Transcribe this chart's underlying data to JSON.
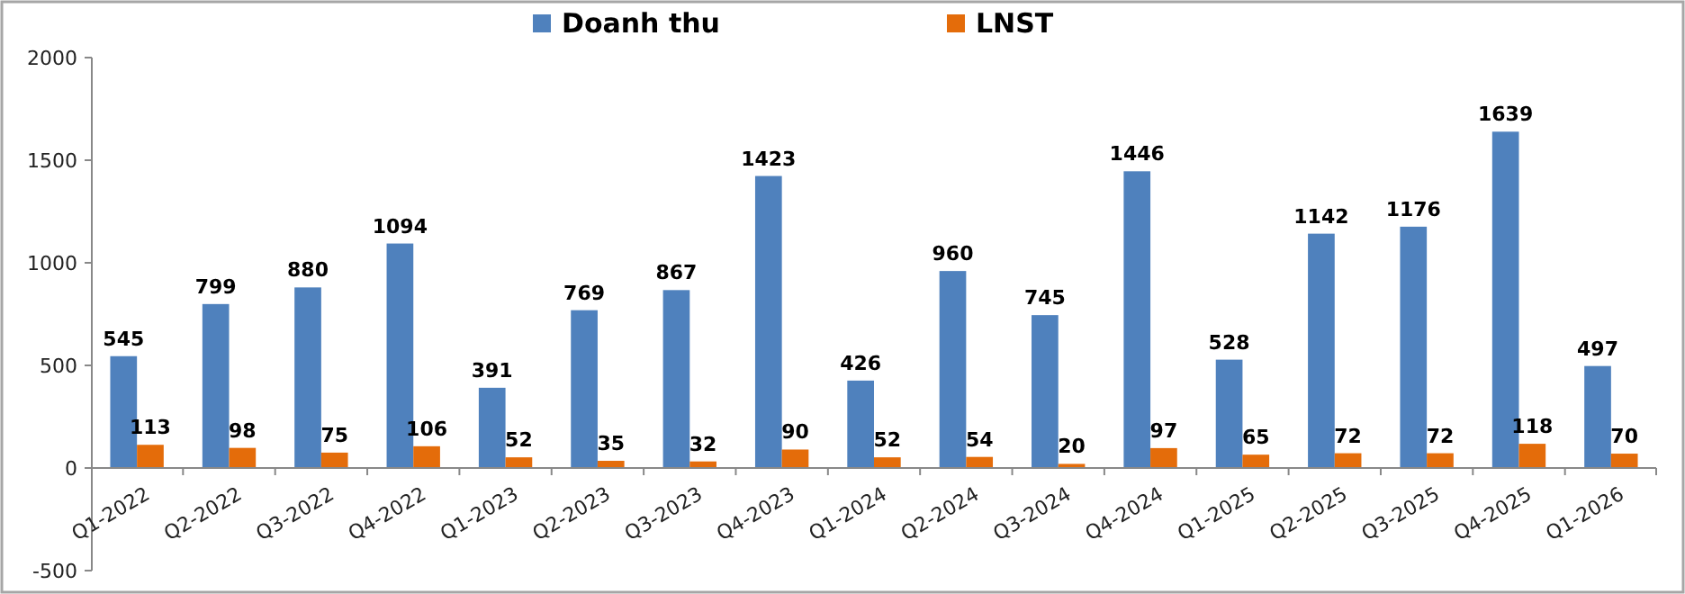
{
  "chart_data": {
    "type": "bar",
    "categories": [
      "Q1-2022",
      "Q2-2022",
      "Q3-2022",
      "Q4-2022",
      "Q1-2023",
      "Q2-2023",
      "Q3-2023",
      "Q4-2023",
      "Q1-2024",
      "Q2-2024",
      "Q3-2024",
      "Q4-2024",
      "Q1-2025",
      "Q2-2025",
      "Q3-2025",
      "Q4-2025",
      "Q1-2026"
    ],
    "series": [
      {
        "name": "Doanh thu",
        "color": "#4f81bd",
        "values": [
          545,
          799,
          880,
          1094,
          391,
          769,
          867,
          1423,
          426,
          960,
          745,
          1446,
          528,
          1142,
          1176,
          1639,
          497
        ]
      },
      {
        "name": "LNST",
        "color": "#e46c0a",
        "values": [
          113,
          98,
          75,
          106,
          52,
          35,
          32,
          90,
          52,
          54,
          20,
          97,
          65,
          72,
          72,
          118,
          70
        ]
      }
    ],
    "ylim": [
      -500,
      2000
    ],
    "yticks": [
      -500,
      0,
      500,
      1000,
      1500,
      2000
    ],
    "grid": false,
    "legend": "top",
    "data_labels": true
  }
}
